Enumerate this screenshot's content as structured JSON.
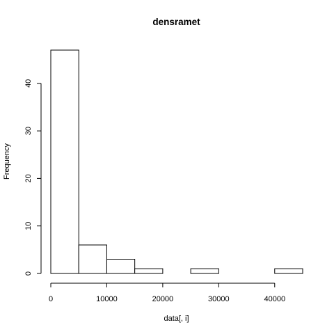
{
  "chart_data": {
    "type": "bar",
    "title": "densramet",
    "xlabel": "data[, i]",
    "ylabel": "Frequency",
    "bins": [
      {
        "start": 0,
        "end": 5000,
        "count": 47
      },
      {
        "start": 5000,
        "end": 10000,
        "count": 6
      },
      {
        "start": 10000,
        "end": 15000,
        "count": 3
      },
      {
        "start": 15000,
        "end": 20000,
        "count": 1
      },
      {
        "start": 20000,
        "end": 25000,
        "count": 0
      },
      {
        "start": 25000,
        "end": 30000,
        "count": 1
      },
      {
        "start": 30000,
        "end": 35000,
        "count": 0
      },
      {
        "start": 35000,
        "end": 40000,
        "count": 0
      },
      {
        "start": 40000,
        "end": 45000,
        "count": 1
      }
    ],
    "x_ticks": [
      0,
      10000,
      20000,
      30000,
      40000
    ],
    "y_ticks": [
      0,
      10,
      20,
      30,
      40
    ],
    "xlim": [
      0,
      45000
    ],
    "ylim": [
      0,
      47
    ],
    "grid": false,
    "legend": "none"
  }
}
